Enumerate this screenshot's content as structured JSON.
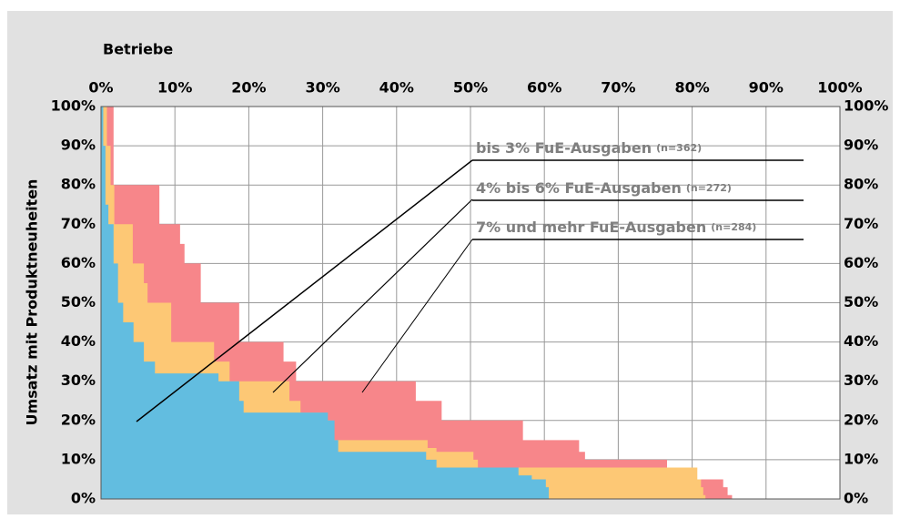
{
  "chart_data": {
    "type": "step-area",
    "x_label": "Betriebe",
    "y_label": "Umsatz mit Produktneuheiten",
    "xlim": [
      0,
      100
    ],
    "ylim": [
      0,
      100
    ],
    "xticks": [
      {
        "value": 0,
        "label": "0%"
      },
      {
        "value": 10,
        "label": "10%"
      },
      {
        "value": 20,
        "label": "20%"
      },
      {
        "value": 30,
        "label": "30%"
      },
      {
        "value": 40,
        "label": "40%"
      },
      {
        "value": 50,
        "label": "50%"
      },
      {
        "value": 60,
        "label": "60%"
      },
      {
        "value": 70,
        "label": "70%"
      },
      {
        "value": 80,
        "label": "80%"
      },
      {
        "value": 90,
        "label": "90%"
      },
      {
        "value": 100,
        "label": "100%"
      }
    ],
    "yticks": [
      {
        "value": 0,
        "label": "0%"
      },
      {
        "value": 10,
        "label": "10%"
      },
      {
        "value": 20,
        "label": "20%"
      },
      {
        "value": 30,
        "label": "30%"
      },
      {
        "value": 40,
        "label": "40%"
      },
      {
        "value": 50,
        "label": "50%"
      },
      {
        "value": 60,
        "label": "60%"
      },
      {
        "value": 70,
        "label": "70%"
      },
      {
        "value": 80,
        "label": "80%"
      },
      {
        "value": 90,
        "label": "90%"
      },
      {
        "value": 100,
        "label": "100%"
      }
    ],
    "grid": true,
    "series": [
      {
        "name": "bis 3% FuE-Ausgaben",
        "n_label": "(n=362)",
        "color": "#62bde0",
        "x": [
          0,
          0.3,
          0.6,
          1.0,
          1.7,
          2.3,
          3.0,
          4.4,
          5.8,
          7.3,
          15.9,
          18.7,
          19.3,
          30.7,
          31.6,
          32.1,
          44.0,
          45.4,
          56.5,
          58.3,
          60.2,
          60.6
        ],
        "values": [
          100,
          90,
          75,
          70,
          60,
          50,
          45,
          40,
          35,
          32,
          30,
          25,
          22,
          20,
          15,
          12,
          10,
          8,
          6,
          5,
          3,
          1
        ]
      },
      {
        "name": "4% bis 6% FuE-Ausgaben",
        "n_label": "(n=272)",
        "color": "#fdc875",
        "x": [
          0,
          0.8,
          1.3,
          1.8,
          4.3,
          5.8,
          6.3,
          9.5,
          15.3,
          17.4,
          25.5,
          27.0,
          29.7,
          31.0,
          44.2,
          45.4,
          50.4,
          51.0,
          80.7,
          81.2,
          81.5,
          81.8
        ],
        "values": [
          100,
          90,
          80,
          70,
          60,
          55,
          50,
          40,
          35,
          30,
          25,
          22,
          20,
          15,
          13,
          12,
          10,
          8,
          5,
          3,
          1,
          0
        ]
      },
      {
        "name": "7% und mehr FuE-Ausgaben",
        "n_label": "(n=284)",
        "color": "#f7868a",
        "x": [
          0,
          1.7,
          7.9,
          10.7,
          11.3,
          13.5,
          18.7,
          24.7,
          26.4,
          42.6,
          46.1,
          57.1,
          64.7,
          65.5,
          76.6,
          77.1,
          84.2,
          84.8,
          85.4,
          85.6
        ],
        "values": [
          100,
          80,
          70,
          65,
          60,
          50,
          40,
          35,
          30,
          25,
          20,
          15,
          12,
          10,
          8,
          5,
          3,
          1,
          0,
          0
        ]
      }
    ]
  }
}
